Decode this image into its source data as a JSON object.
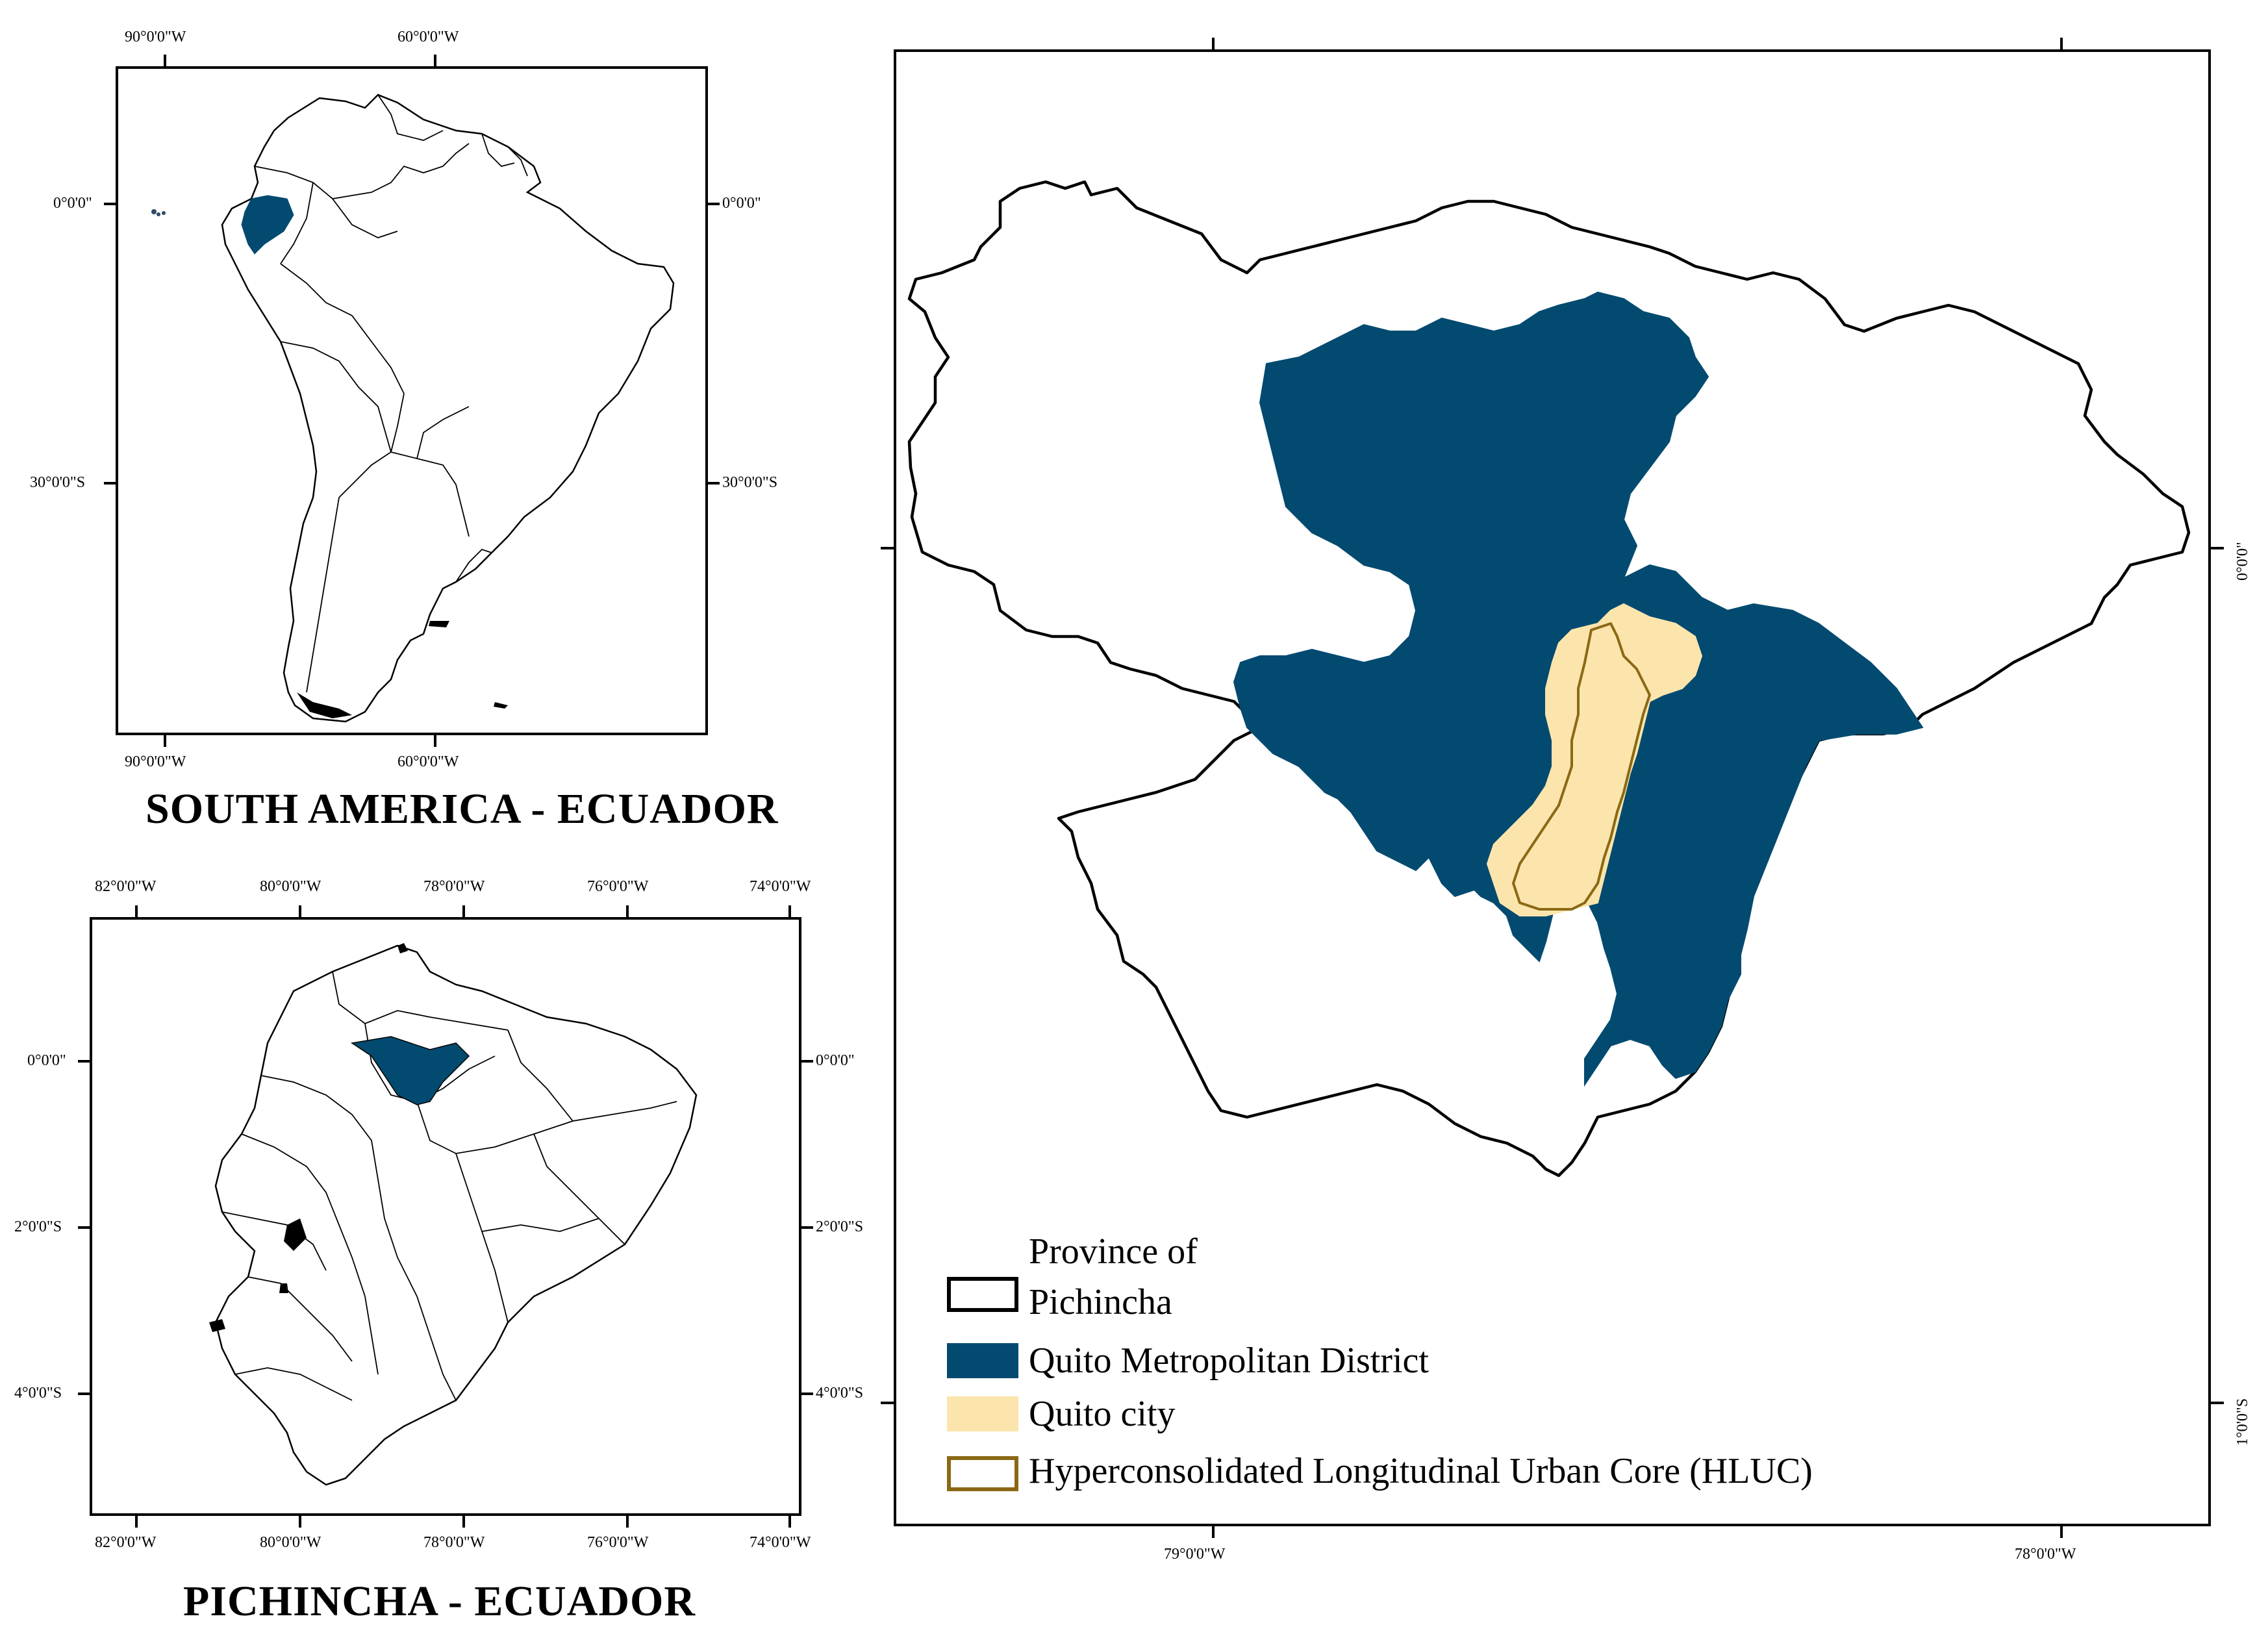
{
  "insets": {
    "south_america": {
      "title": "SOUTH AMERICA - ECUADOR",
      "x_ticks": [
        "90°0'0\"W",
        "60°0'0\"W"
      ],
      "y_ticks": [
        "0°0'0\"",
        "30°0'0\"S"
      ]
    },
    "pichincha": {
      "title": "PICHINCHA - ECUADOR",
      "x_ticks": [
        "82°0'0\"W",
        "80°0'0\"W",
        "78°0'0\"W",
        "76°0'0\"W",
        "74°0'0\"W"
      ],
      "y_ticks": [
        "0°0'0\"",
        "2°0'0\"S",
        "4°0'0\"S"
      ]
    }
  },
  "main_map": {
    "x_ticks": [
      "79°0'0\"W",
      "78°0'0\"W"
    ],
    "y_ticks": [
      "0°0'0\"",
      "1°0'0\"S"
    ]
  },
  "legend": {
    "province": "Province of Pichincha",
    "province_line1": "Province of",
    "province_line2": "Pichincha",
    "district": "Quito Metropolitan District",
    "city": "Quito city",
    "hluc": "Hyperconsolidated Longitudinal Urban Core (HLUC)"
  },
  "colors": {
    "district": "#034a70",
    "city": "#fce5ad",
    "hluc_outline": "#8b6914",
    "border": "#000000"
  }
}
